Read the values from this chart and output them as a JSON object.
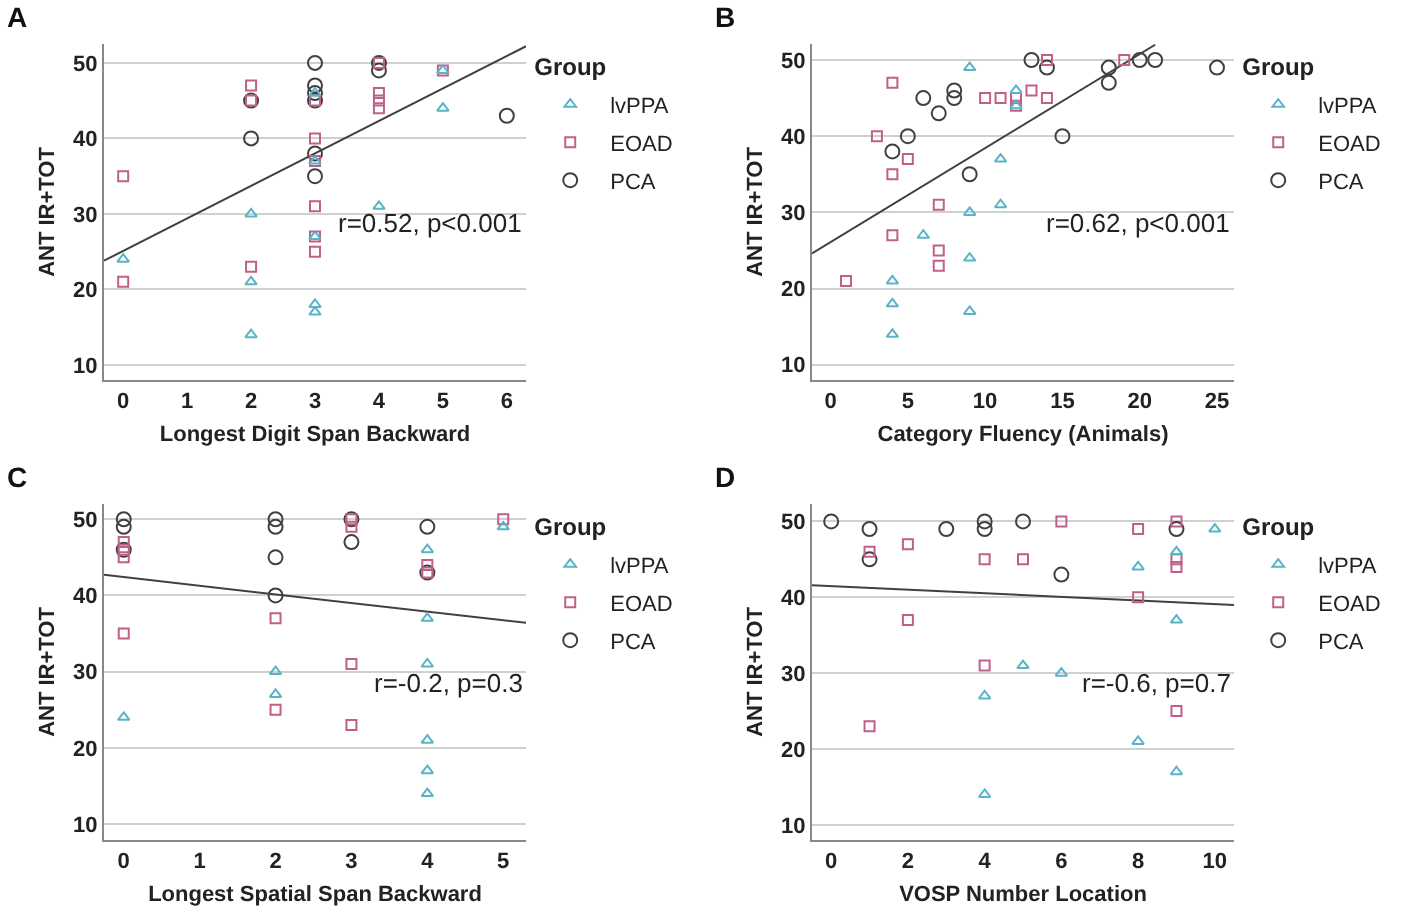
{
  "chart_data": [
    {
      "type": "scatter",
      "title": "A",
      "xlabel": "Longest Digit Span Backward",
      "ylabel": "ANT IR+TOT",
      "legend_title": "Group",
      "legend": "top right",
      "grid": "y",
      "xlim": [
        -0.3,
        6.3
      ],
      "xticks": [
        0,
        1,
        2,
        3,
        4,
        5,
        6
      ],
      "ylim": [
        8,
        52.5
      ],
      "yticks": [
        10,
        20,
        30,
        40,
        50
      ],
      "annotations": [
        "r=0.52, p<0.001"
      ],
      "series": [
        {
          "name": "lvPPA",
          "color": "#5ab4c8",
          "marker": "triangle",
          "x": [
            0,
            2,
            2,
            2,
            3,
            3,
            3,
            3,
            3,
            4,
            5,
            5
          ],
          "values": [
            24,
            30,
            21,
            14,
            46,
            37,
            27,
            18,
            17,
            31,
            49,
            44
          ]
        },
        {
          "name": "EOAD",
          "color": "#c06088",
          "marker": "square",
          "x": [
            0,
            0,
            2,
            2,
            2,
            3,
            3,
            3,
            3,
            3,
            3,
            4,
            4,
            4,
            4,
            5
          ],
          "values": [
            35,
            21,
            47,
            45,
            23,
            45,
            40,
            37,
            31,
            27,
            25,
            46,
            45,
            44,
            50,
            49
          ]
        },
        {
          "name": "PCA",
          "color": "#404040",
          "marker": "circle",
          "x": [
            2,
            2,
            3,
            3,
            3,
            3,
            3,
            3,
            4,
            4,
            6
          ],
          "values": [
            45,
            40,
            50,
            47,
            46,
            45,
            38,
            35,
            50,
            49,
            43
          ]
        },
        {
          "type": "line",
          "color": "#404040",
          "marker": "none",
          "x": [
            -0.3,
            6.3
          ],
          "values": [
            23.8,
            52.2
          ]
        }
      ]
    },
    {
      "type": "scatter",
      "title": "B",
      "xlabel": "Category Fluency (Animals)",
      "ylabel": "ANT IR+TOT",
      "legend_title": "Group",
      "legend": "top right",
      "grid": "y",
      "xlim": [
        -1.2,
        26.1
      ],
      "xticks": [
        0,
        5,
        10,
        15,
        20,
        25
      ],
      "ylim": [
        8,
        52.1
      ],
      "yticks": [
        10,
        20,
        30,
        40,
        50
      ],
      "annotations": [
        "r=0.62, p<0.001"
      ],
      "series": [
        {
          "name": "lvPPA",
          "color": "#5ab4c8",
          "marker": "triangle",
          "x": [
            9,
            12,
            12,
            11,
            9,
            11,
            6,
            9,
            4,
            4,
            4,
            9
          ],
          "values": [
            49,
            46,
            44,
            37,
            30,
            31,
            27,
            24,
            21,
            18,
            14,
            17
          ]
        },
        {
          "name": "EOAD",
          "color": "#c06088",
          "marker": "square",
          "x": [
            4,
            3,
            5,
            4,
            7,
            4,
            7,
            7,
            1,
            10,
            11,
            12,
            12,
            13,
            14,
            14,
            19
          ],
          "values": [
            47,
            40,
            37,
            35,
            31,
            27,
            25,
            23,
            21,
            45,
            45,
            45,
            44,
            46,
            45,
            50,
            50
          ]
        },
        {
          "name": "PCA",
          "color": "#404040",
          "marker": "circle",
          "x": [
            4,
            5,
            6,
            7,
            8,
            8,
            9,
            13,
            14,
            15,
            18,
            18,
            20,
            21,
            25
          ],
          "values": [
            38,
            40,
            45,
            43,
            46,
            45,
            35,
            50,
            49,
            40,
            49,
            47,
            50,
            50,
            49
          ]
        },
        {
          "type": "line",
          "color": "#404040",
          "marker": "none",
          "x": [
            -1.2,
            21
          ],
          "values": [
            24.6,
            52
          ]
        }
      ]
    },
    {
      "type": "scatter",
      "title": "C",
      "xlabel": "Longest Spatial Span Backward",
      "ylabel": "ANT IR+TOT",
      "legend_title": "Group",
      "legend": "top right",
      "grid": "y",
      "xlim": [
        -0.26,
        5.3
      ],
      "xticks": [
        0,
        1,
        2,
        3,
        4,
        5
      ],
      "ylim": [
        7.9,
        52
      ],
      "yticks": [
        10,
        20,
        30,
        40,
        50
      ],
      "annotations": [
        "r=-0.2, p=0.3"
      ],
      "series": [
        {
          "name": "lvPPA",
          "color": "#5ab4c8",
          "marker": "triangle",
          "x": [
            0,
            2,
            2,
            4,
            4,
            4,
            4,
            4,
            4,
            5
          ],
          "values": [
            24,
            30,
            27,
            46,
            37,
            31,
            21,
            17,
            14,
            49
          ]
        },
        {
          "name": "EOAD",
          "color": "#c06088",
          "marker": "square",
          "x": [
            0,
            0,
            0,
            0,
            2,
            2,
            3,
            3,
            3,
            3,
            4,
            4,
            5
          ],
          "values": [
            47,
            46,
            45,
            35,
            37,
            25,
            50,
            49,
            31,
            23,
            44,
            43,
            50
          ]
        },
        {
          "name": "PCA",
          "color": "#404040",
          "marker": "circle",
          "x": [
            0,
            0,
            0,
            2,
            2,
            2,
            2,
            3,
            3,
            4,
            4
          ],
          "values": [
            50,
            49,
            46,
            50,
            49,
            45,
            40,
            50,
            47,
            49,
            43
          ]
        },
        {
          "type": "line",
          "color": "#404040",
          "marker": "none",
          "x": [
            -0.26,
            5.3
          ],
          "values": [
            42.7,
            36.4
          ]
        }
      ]
    },
    {
      "type": "scatter",
      "title": "D",
      "xlabel": "VOSP Number Location",
      "ylabel": "ANT IR+TOT",
      "legend_title": "Group",
      "legend": "top right",
      "grid": "y",
      "xlim": [
        -0.5,
        10.5
      ],
      "xticks": [
        0,
        2,
        4,
        6,
        8,
        10
      ],
      "ylim": [
        8,
        52.3
      ],
      "yticks": [
        10,
        20,
        30,
        40,
        50
      ],
      "annotations": [
        "r=-0.6, p=0.7"
      ],
      "series": [
        {
          "name": "lvPPA",
          "color": "#5ab4c8",
          "marker": "triangle",
          "x": [
            10,
            9,
            8,
            9,
            5,
            6,
            4,
            8,
            9,
            4
          ],
          "values": [
            49,
            46,
            44,
            37,
            31,
            30,
            27,
            21,
            17,
            14
          ]
        },
        {
          "name": "EOAD",
          "color": "#c06088",
          "marker": "square",
          "x": [
            1,
            2,
            4,
            5,
            6,
            8,
            9,
            9,
            9,
            8,
            2,
            4,
            1,
            9
          ],
          "values": [
            46,
            47,
            45,
            45,
            50,
            49,
            50,
            45,
            44,
            40,
            37,
            31,
            23,
            25
          ]
        },
        {
          "name": "PCA",
          "color": "#404040",
          "marker": "circle",
          "x": [
            0,
            1,
            1,
            3,
            4,
            4,
            5,
            6,
            9
          ],
          "values": [
            50,
            49,
            45,
            49,
            50,
            49,
            50,
            43,
            49
          ]
        },
        {
          "type": "line",
          "color": "#404040",
          "marker": "none",
          "x": [
            -0.5,
            10.5
          ],
          "values": [
            41.6,
            39.0
          ]
        }
      ]
    }
  ]
}
